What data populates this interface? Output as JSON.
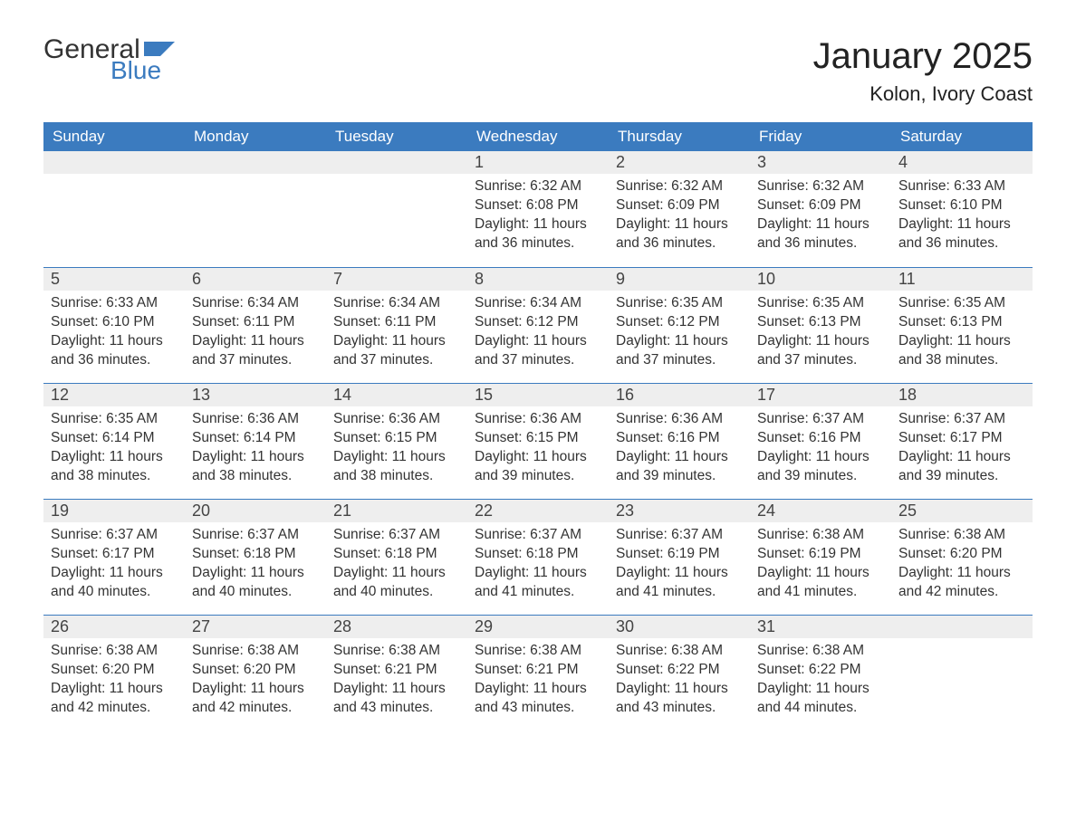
{
  "brand": {
    "word1": "General",
    "word2": "Blue",
    "flag_color": "#3b7bbf"
  },
  "title": "January 2025",
  "location": "Kolon, Ivory Coast",
  "colors": {
    "header_bg": "#3b7bbf",
    "header_text": "#ffffff",
    "daynum_bg": "#eeeeee",
    "row_border": "#3b7bbf",
    "body_text": "#333333",
    "page_bg": "#ffffff"
  },
  "typography": {
    "title_pt": 40,
    "location_pt": 22,
    "th_pt": 17,
    "daynum_pt": 18,
    "body_pt": 15.5
  },
  "weekdays": [
    "Sunday",
    "Monday",
    "Tuesday",
    "Wednesday",
    "Thursday",
    "Friday",
    "Saturday"
  ],
  "weeks": [
    [
      null,
      null,
      null,
      {
        "n": "1",
        "sunrise": "6:32 AM",
        "sunset": "6:08 PM",
        "daylight": "11 hours and 36 minutes."
      },
      {
        "n": "2",
        "sunrise": "6:32 AM",
        "sunset": "6:09 PM",
        "daylight": "11 hours and 36 minutes."
      },
      {
        "n": "3",
        "sunrise": "6:32 AM",
        "sunset": "6:09 PM",
        "daylight": "11 hours and 36 minutes."
      },
      {
        "n": "4",
        "sunrise": "6:33 AM",
        "sunset": "6:10 PM",
        "daylight": "11 hours and 36 minutes."
      }
    ],
    [
      {
        "n": "5",
        "sunrise": "6:33 AM",
        "sunset": "6:10 PM",
        "daylight": "11 hours and 36 minutes."
      },
      {
        "n": "6",
        "sunrise": "6:34 AM",
        "sunset": "6:11 PM",
        "daylight": "11 hours and 37 minutes."
      },
      {
        "n": "7",
        "sunrise": "6:34 AM",
        "sunset": "6:11 PM",
        "daylight": "11 hours and 37 minutes."
      },
      {
        "n": "8",
        "sunrise": "6:34 AM",
        "sunset": "6:12 PM",
        "daylight": "11 hours and 37 minutes."
      },
      {
        "n": "9",
        "sunrise": "6:35 AM",
        "sunset": "6:12 PM",
        "daylight": "11 hours and 37 minutes."
      },
      {
        "n": "10",
        "sunrise": "6:35 AM",
        "sunset": "6:13 PM",
        "daylight": "11 hours and 37 minutes."
      },
      {
        "n": "11",
        "sunrise": "6:35 AM",
        "sunset": "6:13 PM",
        "daylight": "11 hours and 38 minutes."
      }
    ],
    [
      {
        "n": "12",
        "sunrise": "6:35 AM",
        "sunset": "6:14 PM",
        "daylight": "11 hours and 38 minutes."
      },
      {
        "n": "13",
        "sunrise": "6:36 AM",
        "sunset": "6:14 PM",
        "daylight": "11 hours and 38 minutes."
      },
      {
        "n": "14",
        "sunrise": "6:36 AM",
        "sunset": "6:15 PM",
        "daylight": "11 hours and 38 minutes."
      },
      {
        "n": "15",
        "sunrise": "6:36 AM",
        "sunset": "6:15 PM",
        "daylight": "11 hours and 39 minutes."
      },
      {
        "n": "16",
        "sunrise": "6:36 AM",
        "sunset": "6:16 PM",
        "daylight": "11 hours and 39 minutes."
      },
      {
        "n": "17",
        "sunrise": "6:37 AM",
        "sunset": "6:16 PM",
        "daylight": "11 hours and 39 minutes."
      },
      {
        "n": "18",
        "sunrise": "6:37 AM",
        "sunset": "6:17 PM",
        "daylight": "11 hours and 39 minutes."
      }
    ],
    [
      {
        "n": "19",
        "sunrise": "6:37 AM",
        "sunset": "6:17 PM",
        "daylight": "11 hours and 40 minutes."
      },
      {
        "n": "20",
        "sunrise": "6:37 AM",
        "sunset": "6:18 PM",
        "daylight": "11 hours and 40 minutes."
      },
      {
        "n": "21",
        "sunrise": "6:37 AM",
        "sunset": "6:18 PM",
        "daylight": "11 hours and 40 minutes."
      },
      {
        "n": "22",
        "sunrise": "6:37 AM",
        "sunset": "6:18 PM",
        "daylight": "11 hours and 41 minutes."
      },
      {
        "n": "23",
        "sunrise": "6:37 AM",
        "sunset": "6:19 PM",
        "daylight": "11 hours and 41 minutes."
      },
      {
        "n": "24",
        "sunrise": "6:38 AM",
        "sunset": "6:19 PM",
        "daylight": "11 hours and 41 minutes."
      },
      {
        "n": "25",
        "sunrise": "6:38 AM",
        "sunset": "6:20 PM",
        "daylight": "11 hours and 42 minutes."
      }
    ],
    [
      {
        "n": "26",
        "sunrise": "6:38 AM",
        "sunset": "6:20 PM",
        "daylight": "11 hours and 42 minutes."
      },
      {
        "n": "27",
        "sunrise": "6:38 AM",
        "sunset": "6:20 PM",
        "daylight": "11 hours and 42 minutes."
      },
      {
        "n": "28",
        "sunrise": "6:38 AM",
        "sunset": "6:21 PM",
        "daylight": "11 hours and 43 minutes."
      },
      {
        "n": "29",
        "sunrise": "6:38 AM",
        "sunset": "6:21 PM",
        "daylight": "11 hours and 43 minutes."
      },
      {
        "n": "30",
        "sunrise": "6:38 AM",
        "sunset": "6:22 PM",
        "daylight": "11 hours and 43 minutes."
      },
      {
        "n": "31",
        "sunrise": "6:38 AM",
        "sunset": "6:22 PM",
        "daylight": "11 hours and 44 minutes."
      },
      null
    ]
  ],
  "labels": {
    "sunrise": "Sunrise: ",
    "sunset": "Sunset: ",
    "daylight": "Daylight: "
  }
}
